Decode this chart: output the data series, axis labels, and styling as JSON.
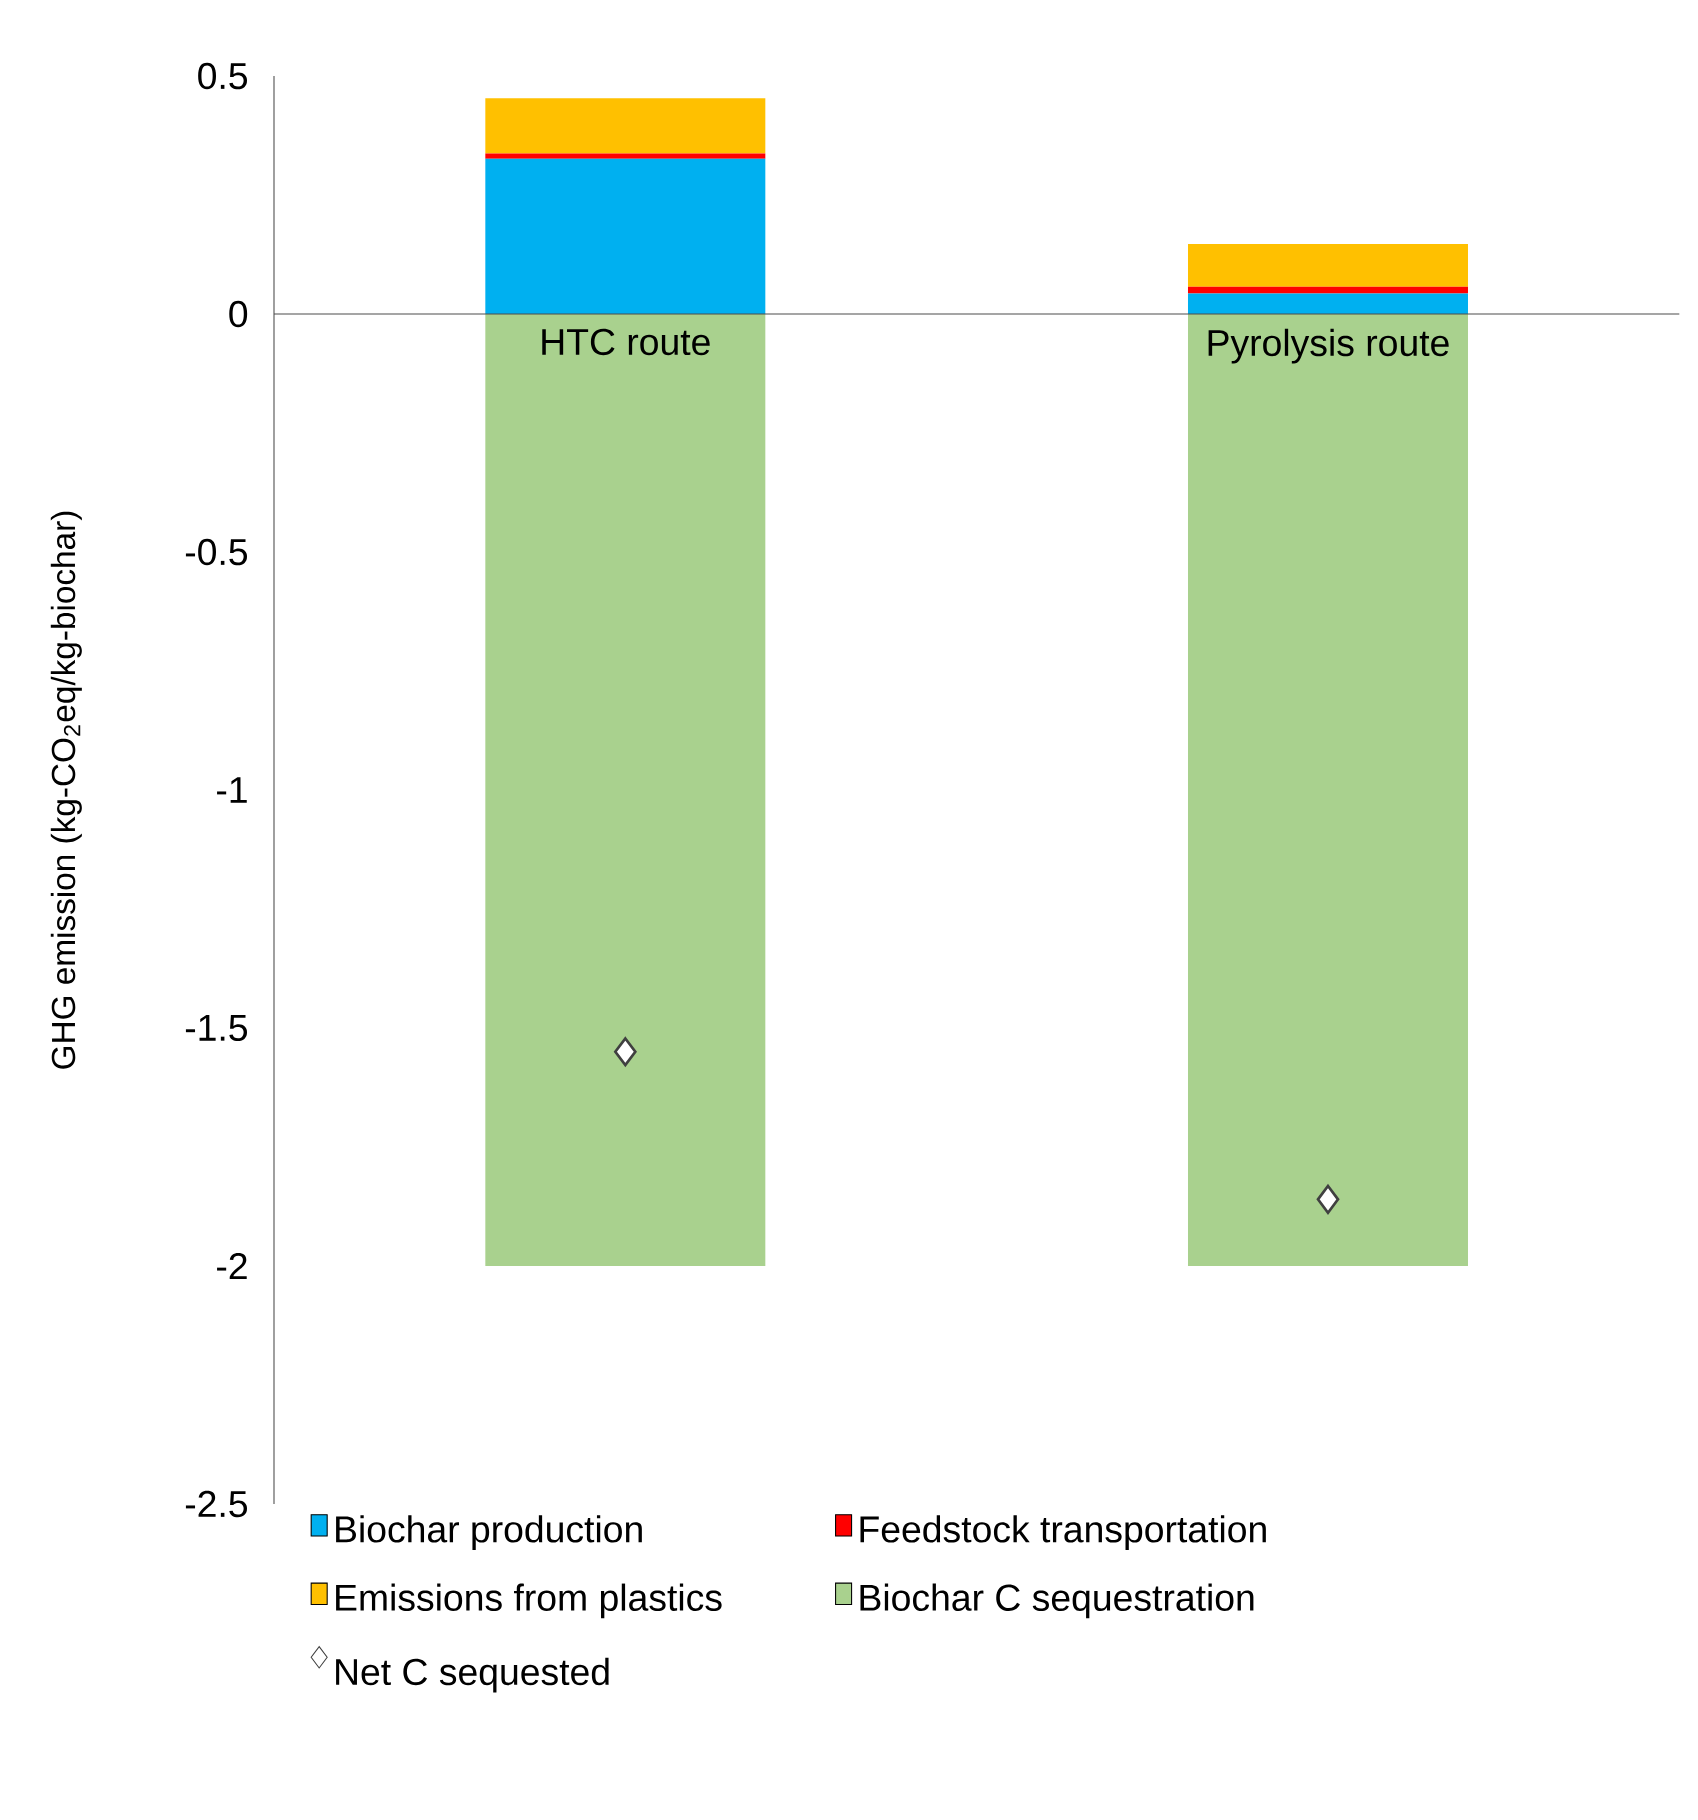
{
  "chart_data": {
    "type": "bar",
    "stacked": true,
    "ylabel": "GHG emission (kg-CO$_{2}$eq/kg-biochar)",
    "categories": [
      "HTC route",
      "Pyrolysis route"
    ],
    "ylim": [
      -2.5,
      0.5
    ],
    "yticks": [
      -2.5,
      -2,
      -1.5,
      -1,
      -0.5,
      0,
      0.5
    ],
    "legend": "bottom",
    "series": [
      {
        "name": "Biochar production",
        "color": "#00b0f0",
        "values": [
          0.326,
          0.043
        ]
      },
      {
        "name": "Feedstock transportation",
        "color": "#ff0000",
        "values": [
          0.011,
          0.014
        ]
      },
      {
        "name": "Emissions from plastics",
        "color": "#ffc000",
        "values": [
          0.116,
          0.09
        ]
      },
      {
        "name": "Biochar C sequestration",
        "color": "#a9d18e",
        "values": [
          -2.0,
          -2.0
        ]
      },
      {
        "name": "Net C sequested",
        "type": "scatter",
        "marker": "diamond",
        "color": "#ffffff",
        "values": [
          -1.55,
          -1.86
        ]
      }
    ]
  }
}
